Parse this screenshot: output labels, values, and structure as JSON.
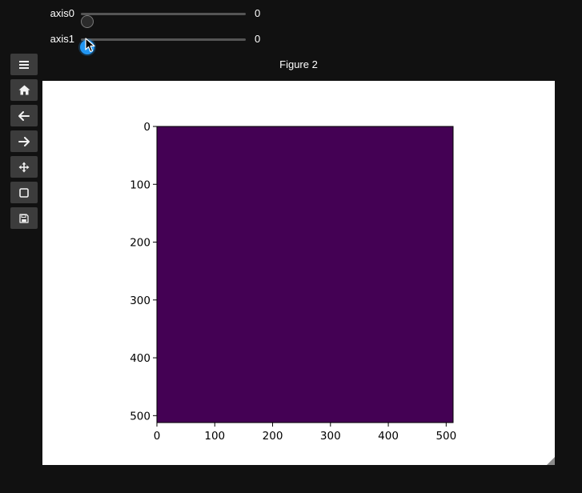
{
  "sliders": [
    {
      "label": "axis0",
      "value": "0",
      "min": 0,
      "max": 100,
      "current": 0,
      "active": false
    },
    {
      "label": "axis1",
      "value": "0",
      "min": 0,
      "max": 100,
      "current": 0,
      "active": true
    }
  ],
  "toolbar": {
    "buttons": [
      {
        "name": "menu",
        "icon": "hamburger-icon"
      },
      {
        "name": "home",
        "icon": "home-icon"
      },
      {
        "name": "back",
        "icon": "arrow-left-icon"
      },
      {
        "name": "forward",
        "icon": "arrow-right-icon"
      },
      {
        "name": "pan",
        "icon": "move-icon"
      },
      {
        "name": "zoom",
        "icon": "square-icon"
      },
      {
        "name": "save",
        "icon": "floppy-icon"
      }
    ]
  },
  "figure": {
    "title": "Figure 2"
  },
  "chart_data": {
    "type": "heatmap",
    "image_color": "#440154",
    "x_ticks": [
      0,
      100,
      200,
      300,
      400,
      500
    ],
    "y_ticks": [
      0,
      100,
      200,
      300,
      400,
      500
    ],
    "xlim": [
      0,
      512
    ],
    "ylim": [
      512,
      0
    ],
    "y_inverted": true,
    "title": "",
    "xlabel": "",
    "ylabel": ""
  }
}
